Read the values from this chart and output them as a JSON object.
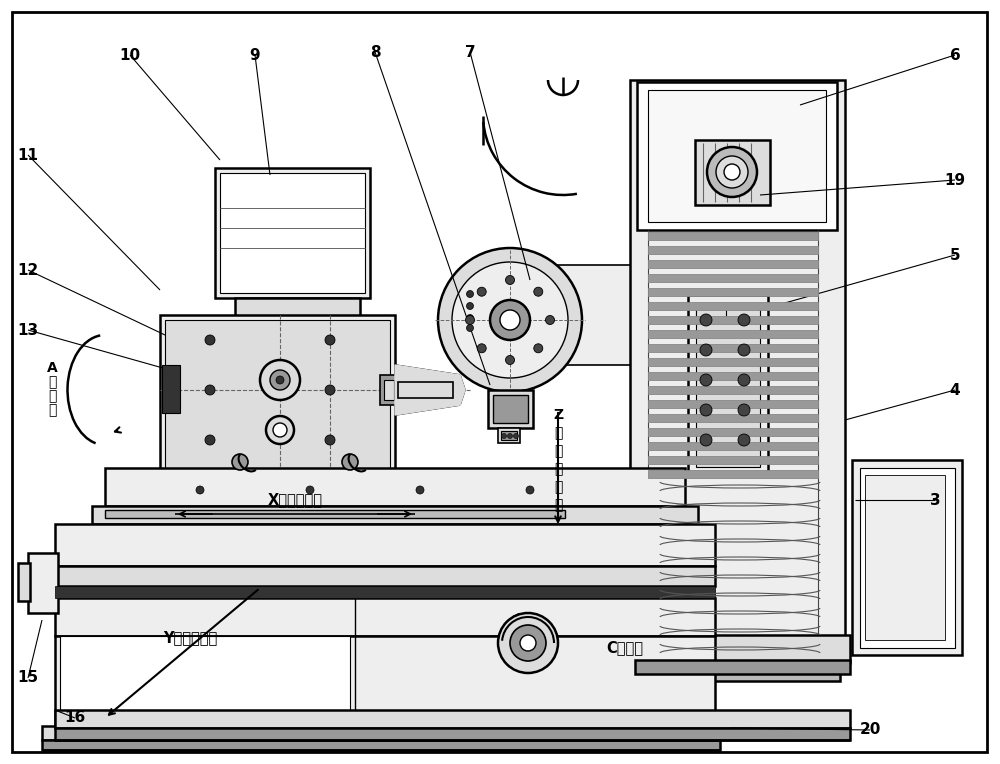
{
  "bg": "#ffffff",
  "lc": "#000000",
  "gray1": "#aaaaaa",
  "gray2": "#888888",
  "gray3": "#cccccc",
  "fc_light": "#f5f5f5",
  "fc_mid": "#e8e8e8",
  "fc_dark": "#d0d0d0",
  "lw": 1.2,
  "lw2": 1.8,
  "label_data": [
    [
      "6",
      955,
      55,
      800,
      105
    ],
    [
      "19",
      955,
      180,
      760,
      195
    ],
    [
      "5",
      955,
      255,
      760,
      310
    ],
    [
      "4",
      955,
      390,
      845,
      420
    ],
    [
      "3",
      935,
      500,
      855,
      500
    ],
    [
      "20",
      870,
      730,
      730,
      728
    ],
    [
      "7",
      470,
      52,
      530,
      280
    ],
    [
      "8",
      375,
      52,
      490,
      385
    ],
    [
      "9",
      255,
      55,
      270,
      175
    ],
    [
      "10",
      130,
      55,
      220,
      160
    ],
    [
      "11",
      28,
      155,
      160,
      290
    ],
    [
      "12",
      28,
      270,
      165,
      335
    ],
    [
      "13",
      28,
      330,
      170,
      370
    ],
    [
      "15",
      28,
      678,
      42,
      620
    ],
    [
      "16",
      75,
      718,
      55,
      710
    ]
  ]
}
